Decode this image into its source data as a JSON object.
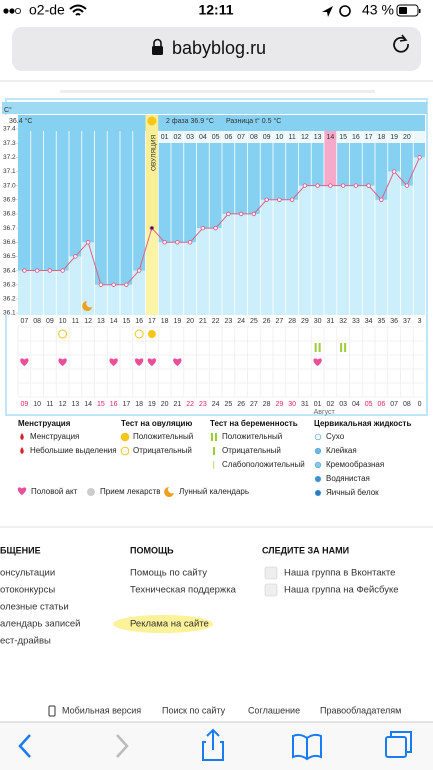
{
  "status": {
    "carrier": "o2-de",
    "time": "12:11",
    "battery": "43 %"
  },
  "url": "babyblog.ru",
  "chart": {
    "unit": "C°",
    "header": {
      "first_phase": "36.4 °C",
      "second_phase": "2 фаза 36.9 °C",
      "difference": "Разница t° 0.5 °C"
    },
    "ovulation": "ОВУЛЯЦИЯ",
    "ylim": [
      36.1,
      37.4
    ],
    "yticks": [
      37.4,
      37.3,
      37.2,
      37.1,
      {
        "value": 37,
        "label": "37.0"
      },
      36.9,
      36.8,
      36.7,
      36.6,
      36.5,
      36.4,
      36.3,
      36.2,
      36.1
    ],
    "cycle_days": [
      "07",
      "08",
      "09",
      "10",
      "11",
      "12",
      "13",
      "14",
      "15",
      "16",
      "17",
      "18",
      "19",
      "20",
      "21",
      "22",
      "23",
      "24",
      "25",
      "26",
      "27",
      "28",
      "29",
      "30",
      "31",
      "32",
      "33",
      "34",
      "35",
      "36",
      "37",
      "3"
    ],
    "values": [
      36.4,
      36.4,
      36.4,
      36.4,
      36.5,
      36.6,
      36.3,
      36.3,
      36.3,
      36.4,
      36.7,
      36.6,
      36.6,
      36.6,
      36.7,
      36.7,
      36.8,
      36.8,
      36.8,
      36.9,
      36.9,
      36.9,
      37.0,
      37.0,
      37.0,
      37.0,
      37.0,
      37.0,
      36.9,
      37.1,
      37.0,
      37.2
    ],
    "phase_days": [
      "01",
      "02",
      "03",
      "04",
      "05",
      "06",
      "07",
      "08",
      "09",
      "10",
      "11",
      "12",
      "13",
      "14",
      "15",
      "16",
      "17",
      "18",
      "19",
      "20"
    ],
    "dates": [
      "09",
      "10",
      "11",
      "12",
      "13",
      "14",
      "15",
      "16",
      "17",
      "18",
      "19",
      "20",
      "21",
      "22",
      "23",
      "24",
      "25",
      "26",
      "27",
      "28",
      "29",
      "30",
      "31",
      "01",
      "02",
      "03",
      "04",
      "05",
      "06",
      "07",
      "08",
      "0"
    ],
    "red_dates": [
      0,
      6,
      7,
      13,
      14,
      20,
      21,
      27,
      28
    ],
    "month": "Август",
    "line_color": "#e0608a",
    "above_color": "#86d1f1",
    "below_color": "#cdeefb"
  },
  "legend": {
    "groups": [
      {
        "title": "Менструация",
        "items": [
          "Менструация",
          "Небольшие выделения"
        ]
      },
      {
        "title": "Тест на овуляцию",
        "items": [
          "Положительный",
          "Отрицательный"
        ]
      },
      {
        "title": "Тест на беременность",
        "items": [
          "Положительный",
          "Отрицательный",
          "Слабоположительный"
        ]
      },
      {
        "title": "Цервикальная жидкость",
        "items": [
          "Сухо",
          "Клейкая",
          "Кремообразная",
          "Водянистая",
          "Яичный белок"
        ]
      }
    ],
    "extra": [
      "Половой акт",
      "Прием лекарств",
      "Лунный календарь"
    ]
  },
  "footer": {
    "columns": [
      {
        "title": "БЩЕНИЕ",
        "links": [
          "онсультации",
          "отоконкурсы",
          "олезные статьи",
          "алендарь записей",
          "ест-драйвы"
        ]
      },
      {
        "title": "ПОМОЩЬ",
        "links": [
          "Помощь по сайту",
          "Техническая поддержка",
          "Реклама на сайте"
        ]
      },
      {
        "title": "СЛЕДИТЕ ЗА НАМИ",
        "links": [
          "Наша группа в Вконтакте",
          "Наша группа на Фейсбуке"
        ]
      }
    ],
    "bottom_links": [
      "Мобильная версия",
      "Поиск по сайту",
      "Соглашение",
      "Правообладателям"
    ]
  }
}
